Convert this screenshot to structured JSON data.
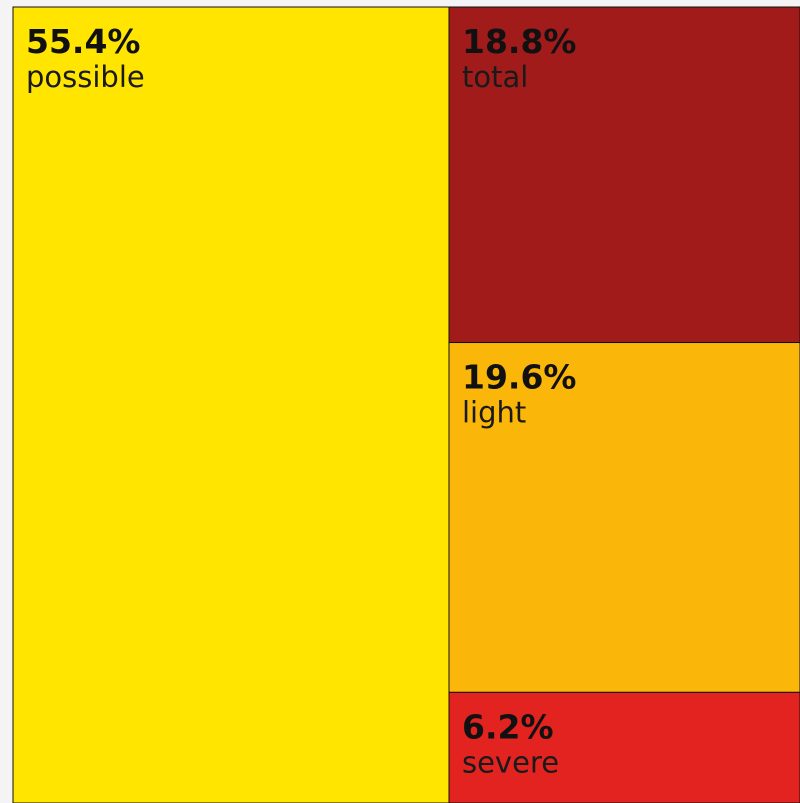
{
  "chart_data": {
    "type": "treemap",
    "items": [
      {
        "label": "possible",
        "value": 55.4,
        "value_text": "55.4%",
        "color": "#FFE500"
      },
      {
        "label": "total",
        "value": 18.8,
        "value_text": "18.8%",
        "color": "#A11B1B"
      },
      {
        "label": "light",
        "value": 19.6,
        "value_text": "19.6%",
        "color": "#FBB60A"
      },
      {
        "label": "severe",
        "value": 6.2,
        "value_text": "6.2%",
        "color": "#E2231F"
      }
    ]
  }
}
